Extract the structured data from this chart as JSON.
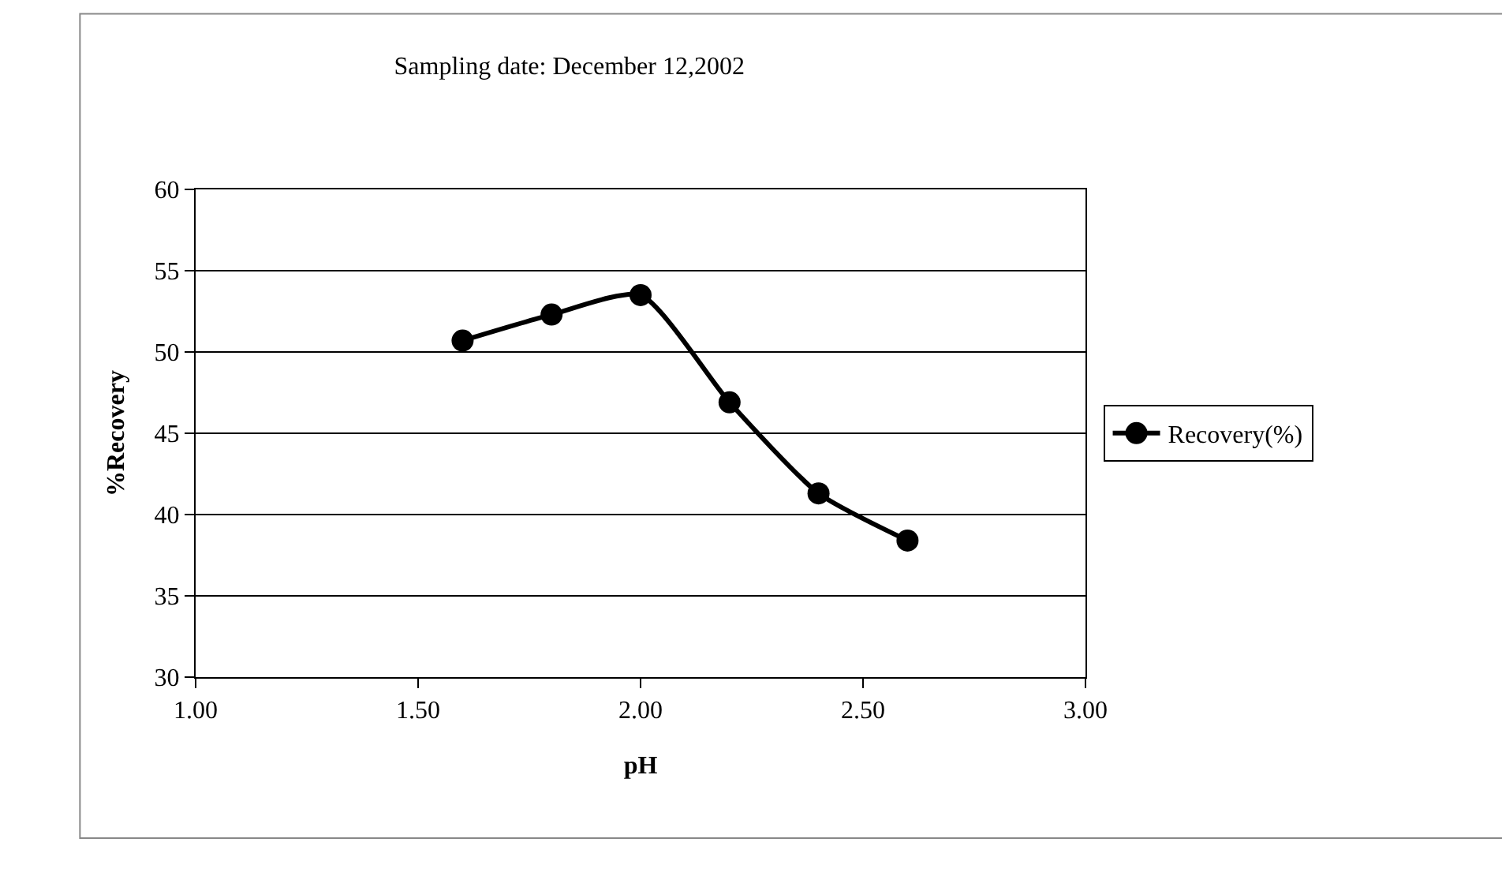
{
  "chart_data": {
    "type": "line",
    "title": "Sampling date: December 12,2002",
    "xlabel": "pH",
    "ylabel": "%Recovery",
    "x": [
      1.6,
      1.8,
      2.0,
      2.2,
      2.4,
      2.6
    ],
    "series": [
      {
        "name": "Recovery(%)",
        "color": "#000000",
        "values": [
          50.7,
          52.3,
          53.5,
          46.9,
          41.3,
          38.4
        ]
      }
    ],
    "xlim": [
      1.0,
      3.0
    ],
    "xticks": [
      {
        "value": 1.0,
        "label": "1.00"
      },
      {
        "value": 1.5,
        "label": "1.50"
      },
      {
        "value": 2.0,
        "label": "2.00"
      },
      {
        "value": 2.5,
        "label": "2.50"
      },
      {
        "value": 3.0,
        "label": "3.00"
      }
    ],
    "ylim": [
      30,
      60
    ],
    "yticks": [
      30,
      35,
      40,
      45,
      50,
      55,
      60
    ],
    "grid": "y",
    "legend": "right",
    "marker": "circle",
    "line_style": "solid"
  }
}
